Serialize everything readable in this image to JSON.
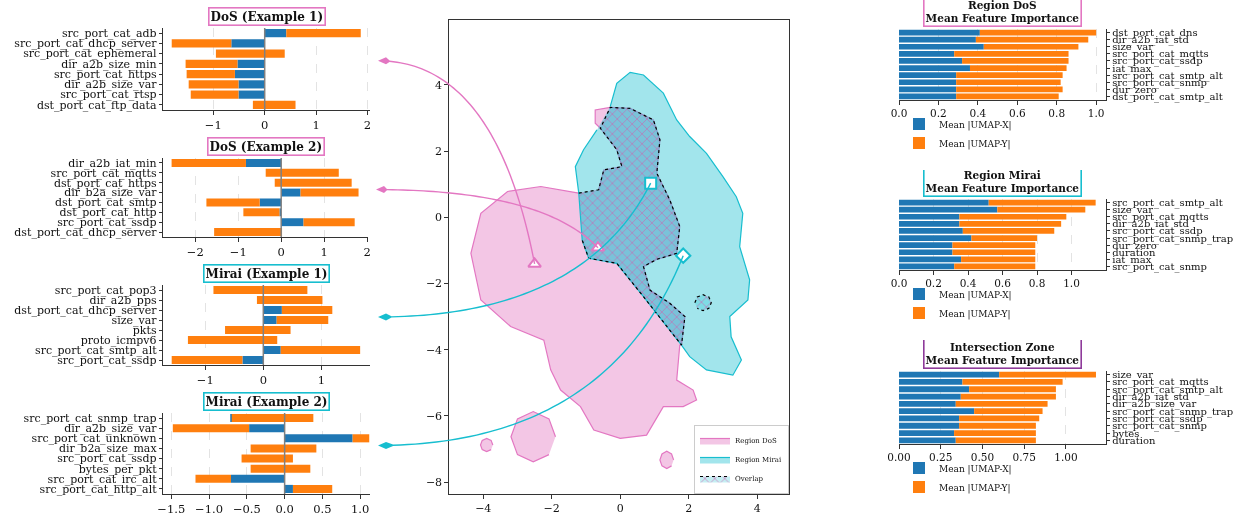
{
  "chart_data": [
    {
      "type": "bar",
      "orientation": "horizontal",
      "stacked": true,
      "title": "DoS (Example 1)",
      "categories": [
        "src_port_cat_adb",
        "src_port_cat_dhcp_server",
        "src_port_cat_ephemeral",
        "dir_a2b_size_min",
        "src_port_cat_https",
        "dir_a2b_size_var",
        "src_port_cat_rtsp",
        "dst_port_cat_ftp_data"
      ],
      "series": [
        {
          "color": "#1f77b4",
          "values": [
            0.42,
            -0.65,
            null,
            -0.53,
            -0.58,
            -0.51,
            -0.51,
            null
          ]
        },
        {
          "color": "#ff7f0e",
          "base": [
            0.42,
            -0.65,
            -0.95,
            -0.53,
            -0.58,
            -0.51,
            -0.51,
            -0.23
          ],
          "values": [
            1.45,
            -1.16,
            1.34,
            -1.01,
            -0.94,
            -0.97,
            -0.93,
            0.83
          ]
        }
      ],
      "xlim": [
        -1.98,
        2.05
      ],
      "xticks": [
        {
          "value": -1,
          "label": "−1"
        },
        0,
        1,
        2
      ],
      "grid": "x",
      "ref_lines": [
        {
          "axis": "x",
          "value": 0,
          "color": "#808080"
        }
      ]
    },
    {
      "type": "bar",
      "orientation": "horizontal",
      "stacked": true,
      "title": "DoS (Example 2)",
      "categories": [
        "dir_a2b_iat_min",
        "src_port_cat_mqtts",
        "dst_port_cat_https",
        "dir_b2a_size_var",
        "dst_port_cat_smtp",
        "dst_port_cat_http",
        "src_port_cat_ssdp",
        "dst_port_cat_dhcp_server"
      ],
      "series": [
        {
          "color": "#1f77b4",
          "values": [
            -0.82,
            null,
            null,
            0.45,
            -0.5,
            -0.04,
            0.52,
            null
          ]
        },
        {
          "color": "#ff7f0e",
          "base": [
            -0.82,
            -0.36,
            -0.15,
            0.45,
            -0.5,
            -0.04,
            0.52,
            -1.56
          ],
          "values": [
            -1.73,
            1.7,
            1.79,
            1.35,
            -1.24,
            -0.84,
            1.19,
            1.58
          ]
        }
      ],
      "xlim": [
        -2.75,
        2.02
      ],
      "xticks": [
        {
          "value": -2,
          "label": "−2"
        },
        {
          "value": -1,
          "label": "−1"
        },
        0,
        1,
        2
      ],
      "grid": "x",
      "ref_lines": [
        {
          "axis": "x",
          "value": 0,
          "color": "#808080"
        }
      ]
    },
    {
      "type": "bar",
      "orientation": "horizontal",
      "stacked": true,
      "title": "Mirai (Example 1)",
      "categories": [
        "src_port_cat_pop3",
        "dir_a2b_pps",
        "dst_port_cat_dhcp_server",
        "size_var",
        "pkts",
        "proto_icmpv6",
        "src_port_cat_smtp_alt",
        "src_port_cat_ssdp"
      ],
      "series": [
        {
          "color": "#1f77b4",
          "values": [
            null,
            null,
            0.32,
            0.23,
            null,
            null,
            0.3,
            -0.36
          ]
        },
        {
          "color": "#ff7f0e",
          "base": [
            -0.86,
            -0.11,
            0.32,
            0.23,
            -0.66,
            -1.3,
            0.3,
            -0.36
          ],
          "values": [
            1.62,
            1.13,
            0.87,
            0.89,
            1.13,
            1.54,
            1.37,
            -1.22
          ]
        }
      ],
      "xlim": [
        -1.73,
        1.84
      ],
      "xticks": [
        {
          "value": -1,
          "label": "−1"
        },
        0,
        1
      ],
      "grid": "x",
      "ref_lines": [
        {
          "axis": "x",
          "value": 0,
          "color": "#808080"
        }
      ]
    },
    {
      "type": "bar",
      "orientation": "horizontal",
      "stacked": true,
      "title": "Mirai (Example 2)",
      "categories": [
        "src_port_cat_snmp_trap",
        "dir_a2b_size_var",
        "src_port_cat_unknown",
        "dir_b2a_size_max",
        "src_port_cat_ssdp",
        "bytes_per_pkt",
        "src_port_cat_irc_alt",
        "src_port_cat_http_alt"
      ],
      "series": [
        {
          "color": "#1f77b4",
          "values": [
            -0.72,
            -0.47,
            0.9,
            null,
            null,
            null,
            -0.71,
            0.11
          ]
        },
        {
          "color": "#ff7f0e",
          "base": [
            -0.7,
            -0.47,
            0.9,
            -0.45,
            -0.57,
            -0.45,
            -0.71,
            0.11
          ],
          "values": [
            1.08,
            -1.01,
            0.22,
            0.87,
            0.68,
            0.79,
            -0.47,
            0.52
          ]
        }
      ],
      "xlim": [
        -1.61,
        1.13
      ],
      "xticks": [
        {
          "value": -1.5,
          "label": "−1.5"
        },
        {
          "value": -1,
          "label": "−1.0"
        },
        {
          "value": -0.5,
          "label": "−0.5"
        },
        {
          "value": 0,
          "label": "0.0"
        },
        {
          "value": 0.5,
          "label": "0.5"
        },
        {
          "value": 1,
          "label": "1.0"
        }
      ],
      "grid": "x",
      "ref_lines": [
        {
          "axis": "x",
          "value": 0,
          "color": "#808080"
        }
      ]
    },
    {
      "type": "area",
      "xlim": [
        -5,
        4.93
      ],
      "ylim": [
        -8.36,
        5.96
      ],
      "xticks": [
        {
          "value": -4,
          "label": "−4"
        },
        {
          "value": -2,
          "label": "−2"
        },
        0,
        2,
        4
      ],
      "yticks": [
        {
          "value": -8,
          "label": "−8"
        },
        {
          "value": -6,
          "label": "−6"
        },
        {
          "value": -4,
          "label": "−4"
        },
        {
          "value": -2,
          "label": "−2"
        },
        0,
        2,
        4
      ],
      "legend": "bottom right",
      "series": [
        {
          "name": "Region DoS",
          "color": "#e377c2",
          "x": [
            -1.21,
            -2.32,
            -3.29,
            -4.07,
            -4.36,
            -4.07,
            -3.2,
            -2.23,
            -2.03,
            -1.74,
            -1.16,
            -0.77,
            0,
            0.77,
            1.26,
            1.84,
            2.23,
            2.13,
            1.65,
            1.74,
            1.79,
            1.89,
            1.45,
            0.87,
            0.68,
            1.07,
            1.65,
            1.74,
            1.45,
            1.07,
            1.16,
            0.97,
            0.29,
            -0.29,
            -0.73,
            -0.73,
            -0.58,
            -0.1,
            0.05,
            -0.48,
            -0.63,
            null,
            -3.72,
            -3.77,
            -3.9,
            -4.03,
            -4.08,
            -4.03,
            -3.9,
            -3.77,
            null,
            -1.89,
            -2.08,
            -2.54,
            -3,
            -3.19,
            -3,
            -2.54,
            -2.08,
            null,
            1.56,
            1.5,
            1.36,
            1.22,
            1.16,
            1.22,
            1.36,
            1.5
          ],
          "values": [
            0.73,
            0.93,
            0.78,
            0.12,
            -1.09,
            -2.5,
            -3.3,
            -3.71,
            -4.61,
            -5.22,
            -5.72,
            -6.43,
            -6.68,
            -6.58,
            -5.72,
            -5.72,
            -5.52,
            -5.22,
            -4.92,
            -3.86,
            -3.86,
            -3,
            -2.6,
            -2.2,
            -1.49,
            -1.27,
            -1.09,
            -0.28,
            0.52,
            1.33,
            2.34,
            2.94,
            3.29,
            3.32,
            3.24,
            2.84,
            2.69,
            2.04,
            1.53,
            1.43,
            0.83,
            null,
            -6.88,
            -6.74,
            -6.68,
            -6.74,
            -6.88,
            -7.02,
            -7.08,
            -7.02,
            null,
            -6.63,
            -6.09,
            -5.87,
            -6.09,
            -6.63,
            -7.17,
            -7.39,
            -7.17,
            null,
            -7.33,
            -7.15,
            -7.07,
            -7.15,
            -7.33,
            -7.51,
            -7.59,
            -7.51
          ]
        },
        {
          "name": "Region Mirai",
          "color": "#17becf",
          "x": [
            -0.29,
            -0.1,
            0.29,
            0.68,
            1.26,
            1.65,
            2.03,
            2.52,
            3,
            3.39,
            3.58,
            3.49,
            3.78,
            3.73,
            3.2,
            3.24,
            3.54,
            3.29,
            2.52,
            2.03,
            1.79,
            0.68,
            -0.1,
            -0.92,
            -1.11,
            -1.21,
            -1.31,
            -1.07,
            -0.68
          ],
          "values": [
            3.35,
            4.05,
            4.38,
            4.3,
            3.75,
            2.94,
            2.44,
            1.93,
            1.23,
            0.62,
            0.12,
            -0.89,
            -1.89,
            -2.5,
            -3,
            -3.61,
            -4.31,
            -4.77,
            -4.61,
            -4.21,
            -3.86,
            -2.4,
            -1.39,
            -1.24,
            -0.69,
            0.73,
            1.53,
            2.04,
            2.64
          ]
        },
        {
          "name": "Overlap",
          "color": "#000000",
          "line_style": "dotted",
          "x": [
            -1.21,
            -0.63,
            -0.48,
            0.05,
            -0.1,
            -0.58,
            -0.29,
            0.29,
            0.97,
            1.16,
            1.07,
            1.45,
            1.74,
            1.65,
            1.07,
            0.68,
            0.87,
            1.45,
            1.89,
            1.79,
            0.68,
            -0.1,
            -0.92,
            -1.11,
            null,
            2.18,
            2.25,
            2.42,
            2.59,
            2.66,
            2.59,
            2.42,
            2.25
          ],
          "values": [
            0.73,
            0.83,
            1.43,
            1.53,
            2.04,
            2.69,
            3.32,
            3.29,
            2.94,
            2.34,
            1.33,
            0.52,
            -0.28,
            -1.09,
            -1.27,
            -1.49,
            -2.2,
            -2.6,
            -3,
            -3.86,
            -2.4,
            -1.39,
            -1.24,
            -0.69,
            null,
            -2.58,
            -2.41,
            -2.34,
            -2.41,
            -2.58,
            -2.75,
            -2.82,
            -2.75
          ]
        },
        {
          "type": "scatter",
          "color": "#e377c2",
          "marker": "triangle",
          "x": [
            -2.5
          ],
          "values": [
            -1.41
          ]
        },
        {
          "type": "scatter",
          "color": "#e377c2",
          "marker": "triangle",
          "x": [
            -0.65
          ],
          "values": [
            -0.92
          ]
        },
        {
          "type": "scatter",
          "color": "#17becf",
          "marker": "square",
          "x": [
            0.89
          ],
          "values": [
            1.03
          ]
        },
        {
          "type": "scatter",
          "color": "#17becf",
          "marker": "diamond",
          "x": [
            1.84
          ],
          "values": [
            -1.16
          ]
        }
      ]
    },
    {
      "type": "bar",
      "orientation": "horizontal",
      "stacked": true,
      "title": "Region DoS\nMean Feature Importance",
      "categories": [
        "dst_port_cat_dns",
        "dir_a2b_iat_std",
        "size_var",
        "src_port_cat_mqtts",
        "src_port_cat_ssdp",
        "iat_max",
        "src_port_cat_smtp_alt",
        "src_port_cat_snmp",
        "dur_zero",
        "dst_port_cat_smtp_alt"
      ],
      "series": [
        {
          "name": "Mean |UMAP-X|",
          "color": "#1f77b4",
          "values": [
            0.41,
            0.39,
            0.43,
            0.28,
            0.32,
            0.36,
            0.29,
            0.29,
            0.29,
            0.29
          ]
        },
        {
          "name": "Mean |UMAP-Y|",
          "color": "#ff7f0e",
          "values": [
            0.59,
            0.57,
            0.48,
            0.58,
            0.54,
            0.49,
            0.54,
            0.53,
            0.54,
            0.52
          ]
        }
      ],
      "xlim": [
        0,
        1.05
      ],
      "xticks": [
        {
          "value": 0,
          "label": "0.0"
        },
        {
          "value": 0.2,
          "label": "0.2"
        },
        {
          "value": 0.4,
          "label": "0.4"
        },
        {
          "value": 0.6,
          "label": "0.6"
        },
        {
          "value": 0.8,
          "label": "0.8"
        },
        {
          "value": 1,
          "label": "1.0"
        }
      ],
      "grid": "x",
      "legend": "bottom"
    },
    {
      "type": "bar",
      "orientation": "horizontal",
      "stacked": true,
      "title": "Region Mirai\nMean Feature Importance",
      "categories": [
        "src_port_cat_smtp_alt",
        "size_var",
        "src_port_cat_mqtts",
        "dir_a2b_iat_std",
        "src_port_cat_ssdp",
        "src_port_cat_snmp_trap",
        "dur_zero",
        "duration",
        "iat_max",
        "src_port_cat_snmp"
      ],
      "series": [
        {
          "name": "Mean |UMAP-X|",
          "color": "#1f77b4",
          "values": [
            0.52,
            0.57,
            0.35,
            0.35,
            0.37,
            0.42,
            0.31,
            0.31,
            0.36,
            0.32
          ]
        },
        {
          "name": "Mean |UMAP-Y|",
          "color": "#ff7f0e",
          "values": [
            0.62,
            0.51,
            0.62,
            0.59,
            0.53,
            0.38,
            0.48,
            0.48,
            0.43,
            0.47
          ]
        }
      ],
      "xlim": [
        0,
        1.2
      ],
      "xticks": [
        {
          "value": 0,
          "label": "0.0"
        },
        {
          "value": 0.2,
          "label": "0.2"
        },
        {
          "value": 0.4,
          "label": "0.4"
        },
        {
          "value": 0.6,
          "label": "0.6"
        },
        {
          "value": 0.8,
          "label": "0.8"
        },
        {
          "value": 1,
          "label": "1.0"
        }
      ],
      "grid": "x",
      "legend": "bottom"
    },
    {
      "type": "bar",
      "orientation": "horizontal",
      "stacked": true,
      "title": "Intersection Zone\nMean Feature Importance",
      "categories": [
        "size_var",
        "src_port_cat_mqtts",
        "src_port_cat_smtp_alt",
        "dir_a2b_iat_std",
        "dir_a2b_size_var",
        "src_port_cat_snmp_trap",
        "src_port_cat_ssdp",
        "src_port_cat_snmp",
        "bytes",
        "duration"
      ],
      "series": [
        {
          "name": "Mean |UMAP-X|",
          "color": "#1f77b4",
          "values": [
            0.6,
            0.38,
            0.42,
            0.37,
            0.34,
            0.45,
            0.36,
            0.36,
            0.33,
            0.34
          ]
        },
        {
          "name": "Mean |UMAP-Y|",
          "color": "#ff7f0e",
          "values": [
            0.58,
            0.6,
            0.52,
            0.57,
            0.55,
            0.41,
            0.48,
            0.46,
            0.49,
            0.48
          ]
        }
      ],
      "xlim": [
        0,
        1.24
      ],
      "xticks": [
        {
          "value": 0,
          "label": "0.00"
        },
        {
          "value": 0.25,
          "label": "0.25"
        },
        {
          "value": 0.5,
          "label": "0.50"
        },
        {
          "value": 0.75,
          "label": "0.75"
        },
        {
          "value": 1,
          "label": "1.00"
        }
      ],
      "grid": "x",
      "legend": "bottom"
    }
  ]
}
